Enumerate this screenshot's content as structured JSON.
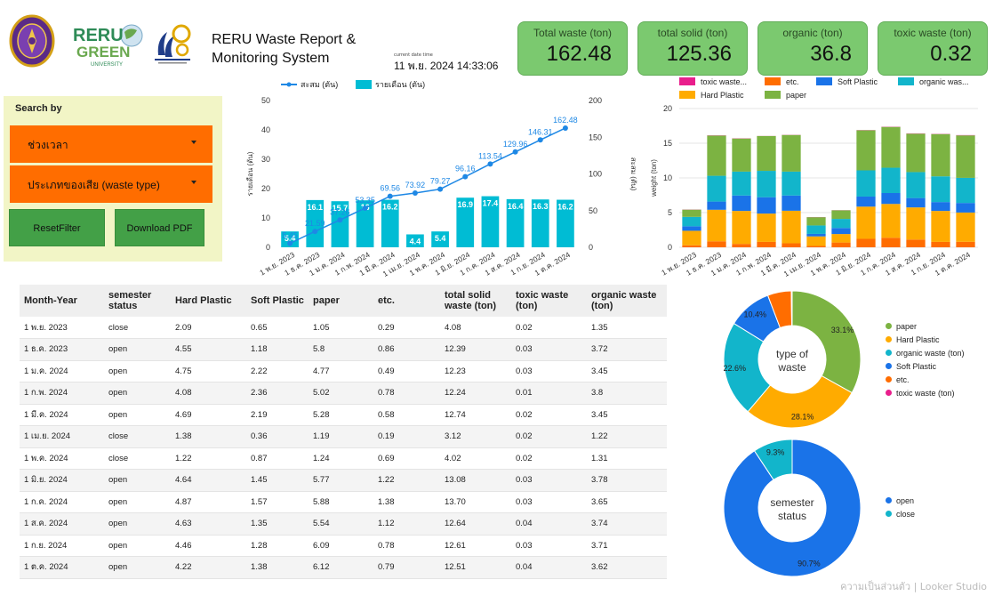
{
  "header": {
    "title_line1": "RERU Waste Report &",
    "title_line2": "Monitoring System",
    "datetime_label": "current date time",
    "datetime_value": "11 พ.ย. 2024 14:33:06",
    "green_logo_line1": "RERU",
    "green_logo_line2": "GREEN",
    "green_logo_line3": "UNIVERSITY"
  },
  "cards": [
    {
      "title": "Total waste (ton)",
      "value": "162.48"
    },
    {
      "title": "total solid (ton)",
      "value": "125.36"
    },
    {
      "title": "organic (ton)",
      "value": "36.8"
    },
    {
      "title": "toxic waste (ton)",
      "value": "0.32"
    }
  ],
  "filters": {
    "title": "Search by",
    "period": "ช่วงเวลา",
    "waste_type": "ประเภทของเสีย (waste type)",
    "reset": "ResetFilter",
    "download": "Download PDF"
  },
  "colors": {
    "bar": "#00bcd4",
    "line": "#1e88e5",
    "hard_plastic": "#ffab00",
    "soft_plastic": "#1a73e8",
    "paper": "#7cb342",
    "etc": "#ff6d00",
    "organic": "#12b5cb",
    "toxic": "#e91e8c",
    "open": "#1a73e8",
    "close": "#12b5cb"
  },
  "chart_data": [
    {
      "type": "bar",
      "title": "",
      "categories": [
        "1 พ.ย. 2023",
        "1 ธ.ค. 2023",
        "1 ม.ค. 2024",
        "1 ก.พ. 2024",
        "1 มี.ค. 2024",
        "1 เม.ย. 2024",
        "1 พ.ค. 2024",
        "1 มิ.ย. 2024",
        "1 ก.ค. 2024",
        "1 ส.ค. 2024",
        "1 ก.ย. 2024",
        "1 ต.ค. 2024"
      ],
      "series": [
        {
          "name": "สะสม (ตัน)",
          "type": "line",
          "axis": "right",
          "values": [
            5.45,
            21.59,
            37.26,
            53.35,
            69.56,
            73.92,
            79.27,
            96.16,
            113.54,
            129.96,
            146.31,
            162.48
          ]
        },
        {
          "name": "รายเดือน (ตัน)",
          "type": "bar",
          "axis": "left",
          "values": [
            5.4,
            16.1,
            15.7,
            16,
            16.2,
            4.4,
            5.4,
            16.9,
            17.4,
            16.4,
            16.3,
            16.2
          ]
        }
      ],
      "ylabel_left": "รายเดือน (ตัน)",
      "ylabel_right": "สะสม (ตัน)",
      "ylim_left": [
        0,
        50
      ],
      "yticks_left": [
        "0",
        "10",
        "20",
        "30",
        "40",
        "50"
      ],
      "ylim_right": [
        0,
        200
      ],
      "yticks_right": [
        "0",
        "50",
        "100",
        "150",
        "200"
      ],
      "legend": "top"
    },
    {
      "type": "bar",
      "stacked": true,
      "categories": [
        "1 พ.ย. 2023",
        "1 ธ.ค. 2023",
        "1 ม.ค. 2024",
        "1 ก.พ. 2024",
        "1 มี.ค. 2024",
        "1 เม.ย. 2024",
        "1 พ.ค. 2024",
        "1 มิ.ย. 2024",
        "1 ก.ค. 2024",
        "1 ส.ค. 2024",
        "1 ก.ย. 2024",
        "1 ต.ค. 2024"
      ],
      "series": [
        {
          "name": "toxic waste...",
          "key": "toxic",
          "values": [
            0.02,
            0.03,
            0.03,
            0.01,
            0.02,
            0.02,
            0.02,
            0.03,
            0.03,
            0.04,
            0.03,
            0.04
          ]
        },
        {
          "name": "etc.",
          "key": "etc",
          "values": [
            0.29,
            0.86,
            0.49,
            0.78,
            0.58,
            0.19,
            0.69,
            1.22,
            1.38,
            1.12,
            0.78,
            0.79
          ]
        },
        {
          "name": "Soft Plastic",
          "key": "soft_plastic",
          "values": [
            0.65,
            1.18,
            2.22,
            2.36,
            2.19,
            0.36,
            0.87,
            1.45,
            1.57,
            1.35,
            1.28,
            1.38
          ]
        },
        {
          "name": "organic was...",
          "key": "organic",
          "values": [
            1.35,
            3.72,
            3.45,
            3.8,
            3.45,
            1.22,
            1.31,
            3.78,
            3.65,
            3.74,
            3.71,
            3.62
          ]
        },
        {
          "name": "Hard Plastic",
          "key": "hard_plastic",
          "values": [
            2.09,
            4.55,
            4.75,
            4.08,
            4.69,
            1.38,
            1.22,
            4.64,
            4.87,
            4.63,
            4.46,
            4.22
          ]
        },
        {
          "name": "paper",
          "key": "paper",
          "values": [
            1.05,
            5.8,
            4.77,
            5.02,
            5.28,
            1.19,
            1.24,
            5.77,
            5.88,
            5.54,
            6.09,
            6.12
          ]
        }
      ],
      "ylabel": "weight (ton)",
      "ylim": [
        0,
        20
      ],
      "yticks": [
        "0",
        "5",
        "10",
        "15",
        "20"
      ],
      "legend": "top"
    },
    {
      "type": "pie",
      "donut": true,
      "center_label_line1": "type of",
      "center_label_line2": "waste",
      "slices": [
        {
          "name": "paper",
          "key": "paper",
          "value": 33.1,
          "label": "33.1%"
        },
        {
          "name": "Hard Plastic",
          "key": "hard_plastic",
          "value": 28.1,
          "label": "28.1%"
        },
        {
          "name": "organic waste (ton)",
          "key": "organic",
          "value": 22.6,
          "label": "22.6%"
        },
        {
          "name": "Soft Plastic",
          "key": "soft_plastic",
          "value": 10.4,
          "label": "10.4%"
        },
        {
          "name": "etc.",
          "key": "etc",
          "value": 5.6,
          "label": ""
        },
        {
          "name": "toxic waste (ton)",
          "key": "toxic",
          "value": 0.2,
          "label": ""
        }
      ],
      "legend": "right"
    },
    {
      "type": "pie",
      "donut": true,
      "center_label_line1": "semester",
      "center_label_line2": "status",
      "slices": [
        {
          "name": "open",
          "key": "open",
          "value": 90.7,
          "label": "90.7%"
        },
        {
          "name": "close",
          "key": "close",
          "value": 9.3,
          "label": "9.3%"
        }
      ],
      "legend": "right"
    }
  ],
  "table": {
    "headers": [
      "Month-Year",
      "semester status",
      "Hard Plastic",
      "Soft Plastic",
      "paper",
      "etc.",
      "total solid waste (ton)",
      "toxic waste (ton)",
      "organic waste (ton)"
    ],
    "rows": [
      [
        "1 พ.ย. 2023",
        "close",
        "2.09",
        "0.65",
        "1.05",
        "0.29",
        "4.08",
        "0.02",
        "1.35"
      ],
      [
        "1 ธ.ค. 2023",
        "open",
        "4.55",
        "1.18",
        "5.8",
        "0.86",
        "12.39",
        "0.03",
        "3.72"
      ],
      [
        "1 ม.ค. 2024",
        "open",
        "4.75",
        "2.22",
        "4.77",
        "0.49",
        "12.23",
        "0.03",
        "3.45"
      ],
      [
        "1 ก.พ. 2024",
        "open",
        "4.08",
        "2.36",
        "5.02",
        "0.78",
        "12.24",
        "0.01",
        "3.8"
      ],
      [
        "1 มี.ค. 2024",
        "open",
        "4.69",
        "2.19",
        "5.28",
        "0.58",
        "12.74",
        "0.02",
        "3.45"
      ],
      [
        "1 เม.ย. 2024",
        "close",
        "1.38",
        "0.36",
        "1.19",
        "0.19",
        "3.12",
        "0.02",
        "1.22"
      ],
      [
        "1 พ.ค. 2024",
        "close",
        "1.22",
        "0.87",
        "1.24",
        "0.69",
        "4.02",
        "0.02",
        "1.31"
      ],
      [
        "1 มิ.ย. 2024",
        "open",
        "4.64",
        "1.45",
        "5.77",
        "1.22",
        "13.08",
        "0.03",
        "3.78"
      ],
      [
        "1 ก.ค. 2024",
        "open",
        "4.87",
        "1.57",
        "5.88",
        "1.38",
        "13.70",
        "0.03",
        "3.65"
      ],
      [
        "1 ส.ค. 2024",
        "open",
        "4.63",
        "1.35",
        "5.54",
        "1.12",
        "12.64",
        "0.04",
        "3.74"
      ],
      [
        "1 ก.ย. 2024",
        "open",
        "4.46",
        "1.28",
        "6.09",
        "0.78",
        "12.61",
        "0.03",
        "3.71"
      ],
      [
        "1 ต.ค. 2024",
        "open",
        "4.22",
        "1.38",
        "6.12",
        "0.79",
        "12.51",
        "0.04",
        "3.62"
      ]
    ]
  },
  "footer": {
    "text": "ความเป็นส่วนตัว  |  Looker Studio"
  }
}
